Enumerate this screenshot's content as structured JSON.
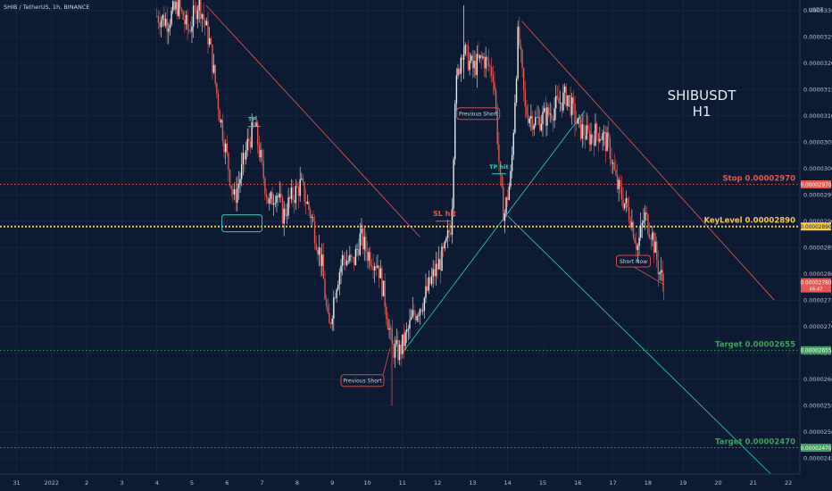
{
  "header": {
    "symbol_line": "SHIB / TetherUS, 1h, BINANCE"
  },
  "colors": {
    "background": "#0c1a33",
    "up": "#eaeaea",
    "down": "#e5574f",
    "key": "#f7c948",
    "stop": "#e5574f",
    "target": "#3ea15b",
    "teal": "#2fd0c0",
    "grid": "#1b2a45"
  },
  "chart_data": {
    "type": "candlestick",
    "title": "SHIBUSDT",
    "subtitle": "H1",
    "y_unit": "USDT",
    "ylim": [
      2.42e-05,
      3.32e-05
    ],
    "y_ticks": [
      2.45e-05,
      2.5e-05,
      2.55e-05,
      2.6e-05,
      2.65e-05,
      2.7e-05,
      2.75e-05,
      2.8e-05,
      2.85e-05,
      2.9e-05,
      2.95e-05,
      3e-05,
      3.05e-05,
      3.1e-05,
      3.15e-05,
      3.2e-05,
      3.25e-05,
      3.3e-05
    ],
    "y_tick_labels": [
      "0.00002450",
      "0.00002500",
      "0.00002550",
      "0.00002600",
      "0.00002650",
      "0.00002700",
      "0.00002750",
      "0.00002800",
      "0.00002850",
      "0.00002900",
      "0.00002950",
      "0.00003000",
      "0.00003050",
      "0.00003100",
      "0.00003150",
      "0.00003200",
      "0.00003250",
      "0.00003300"
    ],
    "x_tick_labels": [
      "31",
      "2022",
      "2",
      "3",
      "4",
      "5",
      "6",
      "7",
      "8",
      "9",
      "10",
      "11",
      "12",
      "13",
      "14",
      "15",
      "16",
      "17",
      "18",
      "19",
      "20",
      "21",
      "22"
    ],
    "levels": [
      {
        "label": "Stop 0.00002970",
        "price": 2.97e-05,
        "tag": "0.00002970",
        "color": "#e5574f"
      },
      {
        "label": "KeyLevel 0.00002890",
        "price": 2.89e-05,
        "tag": "0.00002890",
        "color": "#f7c948"
      },
      {
        "label": "Target 0.00002655",
        "price": 2.655e-05,
        "tag": "0.00002655",
        "color": "#3ea15b"
      },
      {
        "label": "Target 0.00002470",
        "price": 2.47e-05,
        "tag": "0.00002470",
        "color": "#3ea15b"
      }
    ],
    "current_price": {
      "label": "0.00002780",
      "sub": "46:47",
      "value": 2.78e-05
    },
    "close_path": [
      [
        4.0,
        3.29e-05
      ],
      [
        4.3,
        3.28e-05
      ],
      [
        4.6,
        3.31e-05
      ],
      [
        4.9,
        3.26e-05
      ],
      [
        5.2,
        3.32e-05
      ],
      [
        5.5,
        3.24e-05
      ],
      [
        5.8,
        3.1e-05
      ],
      [
        6.0,
        3.02e-05
      ],
      [
        6.2,
        2.94e-05
      ],
      [
        6.4,
        2.99e-05
      ],
      [
        6.6,
        3.05e-05
      ],
      [
        6.8,
        3.08e-05
      ],
      [
        7.0,
        3e-05
      ],
      [
        7.2,
        2.93e-05
      ],
      [
        7.4,
        2.96e-05
      ],
      [
        7.6,
        2.91e-05
      ],
      [
        7.8,
        2.94e-05
      ],
      [
        8.1,
        2.97e-05
      ],
      [
        8.4,
        2.91e-05
      ],
      [
        8.7,
        2.82e-05
      ],
      [
        8.9,
        2.69e-05
      ],
      [
        9.1,
        2.78e-05
      ],
      [
        9.3,
        2.83e-05
      ],
      [
        9.6,
        2.82e-05
      ],
      [
        9.8,
        2.87e-05
      ],
      [
        10.0,
        2.84e-05
      ],
      [
        10.3,
        2.82e-05
      ],
      [
        10.5,
        2.75e-05
      ],
      [
        10.7,
        2.66e-05
      ],
      [
        10.9,
        2.65e-05
      ],
      [
        11.1,
        2.68e-05
      ],
      [
        11.3,
        2.72e-05
      ],
      [
        11.6,
        2.75e-05
      ],
      [
        11.9,
        2.8e-05
      ],
      [
        12.2,
        2.84e-05
      ],
      [
        12.4,
        2.9e-05
      ],
      [
        12.5,
        3.14e-05
      ],
      [
        12.7,
        3.23e-05
      ],
      [
        13.0,
        3.19e-05
      ],
      [
        13.3,
        3.21e-05
      ],
      [
        13.6,
        3.18e-05
      ],
      [
        13.8,
        2.96e-05
      ],
      [
        13.9,
        2.91e-05
      ],
      [
        14.1,
        2.99e-05
      ],
      [
        14.3,
        3.26e-05
      ],
      [
        14.5,
        3.11e-05
      ],
      [
        14.8,
        3.09e-05
      ],
      [
        15.1,
        3.1e-05
      ],
      [
        15.4,
        3.12e-05
      ],
      [
        15.7,
        3.14e-05
      ],
      [
        16.0,
        3.08e-05
      ],
      [
        16.3,
        3.06e-05
      ],
      [
        16.6,
        3.07e-05
      ],
      [
        16.9,
        3.04e-05
      ],
      [
        17.1,
        2.97e-05
      ],
      [
        17.3,
        2.94e-05
      ],
      [
        17.5,
        2.91e-05
      ],
      [
        17.7,
        2.85e-05
      ],
      [
        17.9,
        2.91e-05
      ],
      [
        18.1,
        2.88e-05
      ],
      [
        18.3,
        2.81e-05
      ],
      [
        18.45,
        2.78e-05
      ]
    ],
    "annotations": [
      {
        "text": "TP",
        "color": "#2fd0c0"
      },
      {
        "text": "Previous Short",
        "color": "#e5574f"
      },
      {
        "text": "SL hit",
        "color": "#e5574f"
      },
      {
        "text": "TP hit",
        "color": "#2fd0c0"
      },
      {
        "text": "Previous Short",
        "color": "#e5574f"
      },
      {
        "text": "Short Now",
        "color": "#e5574f"
      }
    ]
  }
}
